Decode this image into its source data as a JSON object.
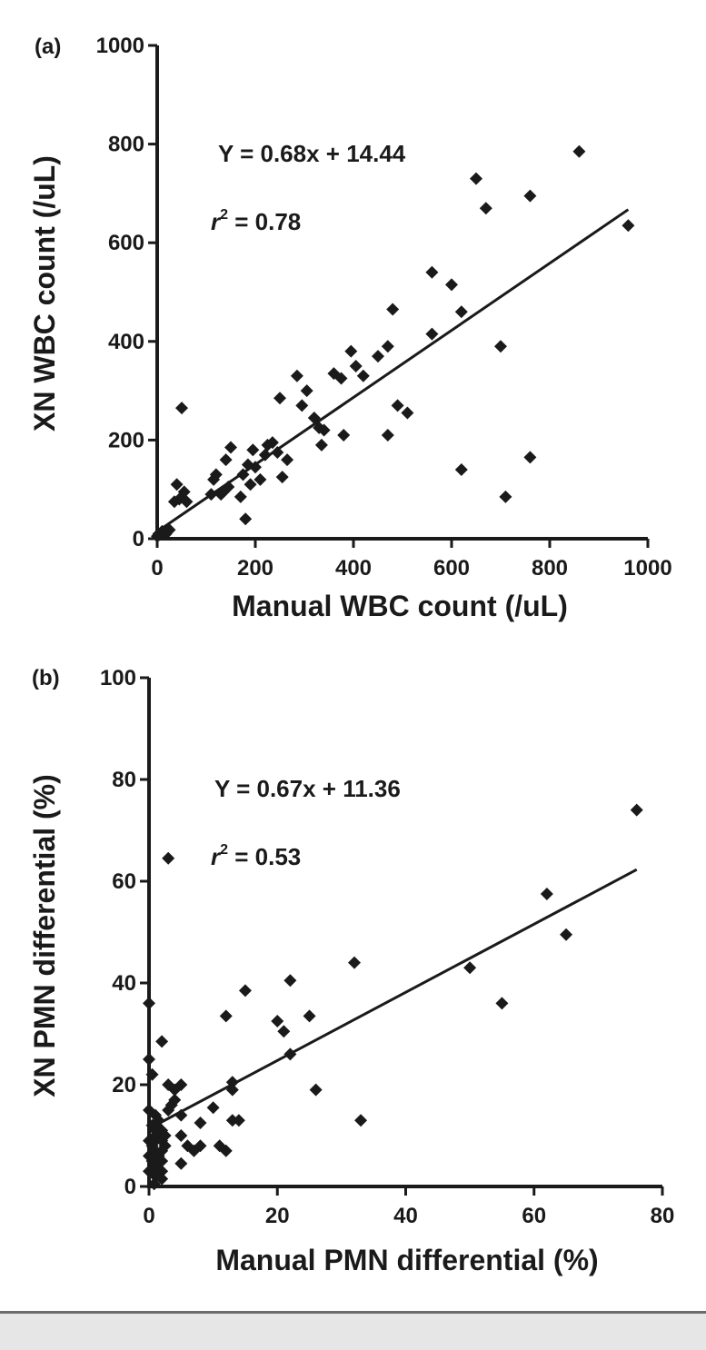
{
  "chart_data": [
    {
      "type": "scatter",
      "panel_label": "(a)",
      "xlabel": "Manual WBC count (/uL)",
      "ylabel": "XN WBC count (/uL)",
      "xlim": [
        0,
        1000
      ],
      "ylim": [
        0,
        1000
      ],
      "xticks": [
        0,
        200,
        400,
        600,
        800,
        1000
      ],
      "yticks": [
        0,
        200,
        400,
        600,
        800,
        1000
      ],
      "grid": false,
      "annotations": {
        "equation": "Y = 0.68x + 14.44",
        "r2_prefix": "r",
        "r2_sup": "2",
        "r2_value": " = 0.78"
      },
      "regression": {
        "slope": 0.68,
        "intercept": 14.44,
        "x_range": [
          0,
          960
        ]
      },
      "points": [
        [
          0,
          5
        ],
        [
          3,
          10
        ],
        [
          5,
          8
        ],
        [
          8,
          12
        ],
        [
          10,
          15
        ],
        [
          15,
          12
        ],
        [
          20,
          15
        ],
        [
          25,
          18
        ],
        [
          18,
          10
        ],
        [
          40,
          110
        ],
        [
          35,
          75
        ],
        [
          45,
          80
        ],
        [
          55,
          95
        ],
        [
          60,
          75
        ],
        [
          50,
          265
        ],
        [
          110,
          90
        ],
        [
          115,
          120
        ],
        [
          120,
          130
        ],
        [
          130,
          90
        ],
        [
          135,
          95
        ],
        [
          140,
          160
        ],
        [
          150,
          185
        ],
        [
          145,
          105
        ],
        [
          170,
          85
        ],
        [
          175,
          130
        ],
        [
          180,
          40
        ],
        [
          185,
          150
        ],
        [
          190,
          110
        ],
        [
          195,
          180
        ],
        [
          200,
          145
        ],
        [
          210,
          120
        ],
        [
          220,
          170
        ],
        [
          225,
          190
        ],
        [
          235,
          195
        ],
        [
          245,
          175
        ],
        [
          250,
          285
        ],
        [
          255,
          125
        ],
        [
          265,
          160
        ],
        [
          285,
          330
        ],
        [
          295,
          270
        ],
        [
          305,
          300
        ],
        [
          320,
          245
        ],
        [
          330,
          225
        ],
        [
          335,
          190
        ],
        [
          340,
          220
        ],
        [
          360,
          335
        ],
        [
          375,
          325
        ],
        [
          380,
          210
        ],
        [
          395,
          380
        ],
        [
          405,
          350
        ],
        [
          420,
          330
        ],
        [
          450,
          370
        ],
        [
          470,
          390
        ],
        [
          470,
          210
        ],
        [
          480,
          465
        ],
        [
          490,
          270
        ],
        [
          510,
          255
        ],
        [
          560,
          540
        ],
        [
          560,
          415
        ],
        [
          600,
          515
        ],
        [
          620,
          460
        ],
        [
          620,
          140
        ],
        [
          650,
          730
        ],
        [
          670,
          670
        ],
        [
          700,
          390
        ],
        [
          710,
          85
        ],
        [
          760,
          695
        ],
        [
          760,
          165
        ],
        [
          860,
          785
        ],
        [
          960,
          635
        ]
      ]
    },
    {
      "type": "scatter",
      "panel_label": "(b)",
      "xlabel": "Manual PMN differential (%)",
      "ylabel": "XN PMN differential (%)",
      "xlim": [
        0,
        80
      ],
      "ylim": [
        0,
        100
      ],
      "xticks": [
        0,
        20,
        40,
        60,
        80
      ],
      "yticks": [
        0,
        20,
        40,
        60,
        80,
        100
      ],
      "grid": false,
      "annotations": {
        "equation": "Y = 0.67x + 11.36",
        "r2_prefix": "r",
        "r2_sup": "2",
        "r2_value": " = 0.53"
      },
      "regression": {
        "slope": 0.67,
        "intercept": 11.36,
        "x_range": [
          0,
          76
        ]
      },
      "points": [
        [
          0,
          36
        ],
        [
          0,
          25
        ],
        [
          0,
          15
        ],
        [
          0,
          9
        ],
        [
          0,
          6
        ],
        [
          0,
          3
        ],
        [
          0.5,
          22
        ],
        [
          0.5,
          12
        ],
        [
          0.5,
          8
        ],
        [
          0.5,
          5
        ],
        [
          0.8,
          0.5
        ],
        [
          1,
          14
        ],
        [
          1,
          11
        ],
        [
          1,
          10
        ],
        [
          1,
          9
        ],
        [
          1,
          7
        ],
        [
          1,
          4
        ],
        [
          1,
          2
        ],
        [
          1.2,
          12
        ],
        [
          1.5,
          10
        ],
        [
          1.5,
          13
        ],
        [
          1.5,
          6
        ],
        [
          2,
          28.5
        ],
        [
          2,
          11
        ],
        [
          2,
          9
        ],
        [
          2,
          7
        ],
        [
          2,
          5
        ],
        [
          2,
          3
        ],
        [
          2,
          1.5
        ],
        [
          2.5,
          10
        ],
        [
          2.5,
          8
        ],
        [
          3,
          64.5
        ],
        [
          3,
          20
        ],
        [
          3,
          15
        ],
        [
          3.5,
          16
        ],
        [
          4,
          17
        ],
        [
          4,
          19
        ],
        [
          5,
          20
        ],
        [
          5,
          14
        ],
        [
          5,
          10
        ],
        [
          5,
          4.5
        ],
        [
          6,
          8
        ],
        [
          7,
          7
        ],
        [
          8,
          8
        ],
        [
          8,
          12.5
        ],
        [
          10,
          15.5
        ],
        [
          11,
          8
        ],
        [
          12,
          33.5
        ],
        [
          12,
          7
        ],
        [
          13,
          20.5
        ],
        [
          13,
          19
        ],
        [
          13,
          13
        ],
        [
          14,
          13
        ],
        [
          15,
          38.5
        ],
        [
          20,
          32.5
        ],
        [
          21,
          30.5
        ],
        [
          22,
          40.5
        ],
        [
          22,
          26
        ],
        [
          25,
          33.5
        ],
        [
          26,
          19
        ],
        [
          32,
          44
        ],
        [
          33,
          13
        ],
        [
          50,
          43
        ],
        [
          55,
          36
        ],
        [
          62,
          57.5
        ],
        [
          65,
          49.5
        ],
        [
          76,
          74
        ]
      ]
    }
  ]
}
